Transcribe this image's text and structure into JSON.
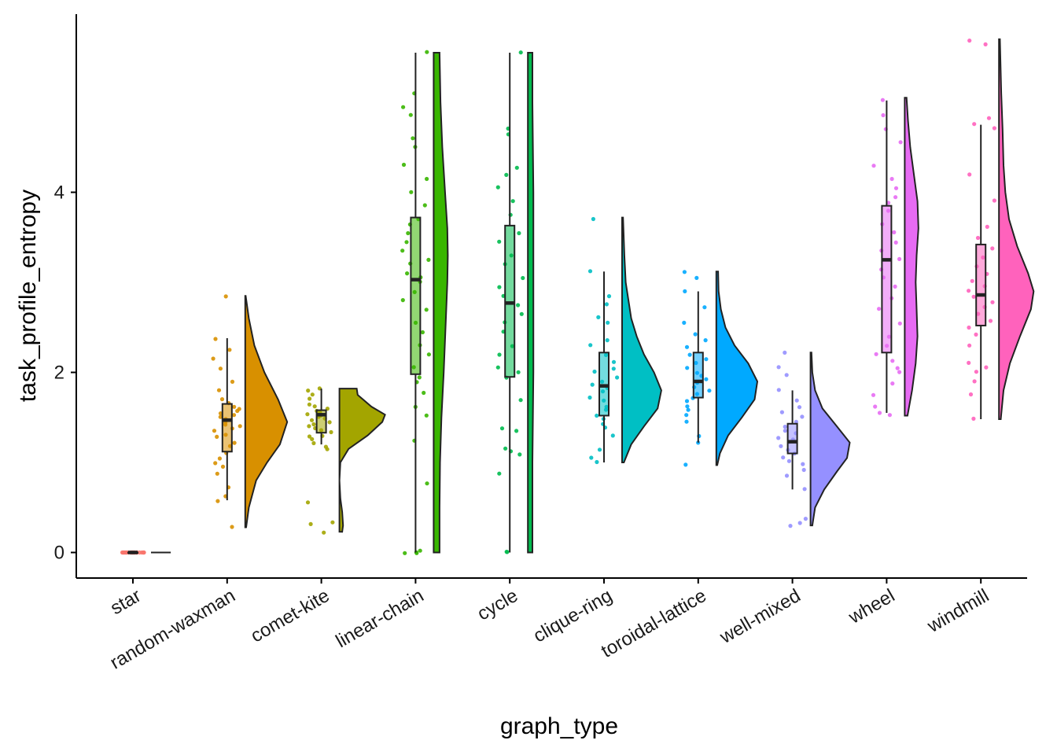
{
  "chart_data": {
    "type": "raincloud",
    "xlabel": "graph_type",
    "ylabel": "task_profile_entropy",
    "ylim": [
      -0.28,
      5.85
    ],
    "yticks": [
      0,
      2,
      4
    ],
    "legend": "none",
    "grid": false,
    "groups": [
      {
        "name": "star",
        "color": "#F8766D",
        "box": {
          "min": 0,
          "q1": 0,
          "median": 0,
          "q3": 0,
          "max": 0
        },
        "density": {
          "ys": [
            0,
            0
          ],
          "ws": [
            0.65,
            0.65
          ]
        },
        "points": {
          "n": 30,
          "values": []
        }
      },
      {
        "name": "random-waxman",
        "color": "#D89000",
        "box": {
          "min": 0.58,
          "q1": 1.12,
          "median": 1.47,
          "q3": 1.65,
          "max": 2.38
        },
        "density": {
          "ys": [
            0.28,
            0.5,
            0.8,
            1.0,
            1.2,
            1.45,
            1.7,
            2.0,
            2.3,
            2.6,
            2.85
          ],
          "ws": [
            0.02,
            0.08,
            0.24,
            0.48,
            0.76,
            0.92,
            0.72,
            0.42,
            0.2,
            0.08,
            0.01
          ]
        },
        "points": {
          "n": 60,
          "values": [
            0.28,
            0.58,
            0.62,
            0.72,
            0.88,
            0.95,
            1.0,
            1.05,
            1.1,
            1.18,
            1.22,
            1.28,
            1.3,
            1.35,
            1.38,
            1.4,
            1.42,
            1.45,
            1.48,
            1.5,
            1.52,
            1.55,
            1.58,
            1.6,
            1.62,
            1.65,
            1.7,
            1.8,
            1.9,
            2.05,
            2.15,
            2.25,
            2.38,
            2.85
          ]
        }
      },
      {
        "name": "comet-kite",
        "color": "#A3A500",
        "box": {
          "min": 1.2,
          "q1": 1.33,
          "median": 1.53,
          "q3": 1.58,
          "max": 1.82
        },
        "density": {
          "ys": [
            0.23,
            0.3,
            0.45,
            0.6,
            0.8,
            1.0,
            1.15,
            1.3,
            1.45,
            1.53,
            1.62,
            1.75,
            1.82
          ],
          "ws": [
            0.06,
            0.08,
            0.06,
            0.02,
            0.0,
            0.02,
            0.2,
            0.62,
            0.94,
            1.0,
            0.7,
            0.4,
            0.38
          ]
        },
        "points": {
          "n": 60,
          "values": [
            0.22,
            0.32,
            0.33,
            0.55,
            1.15,
            1.18,
            1.22,
            1.25,
            1.28,
            1.3,
            1.33,
            1.35,
            1.38,
            1.4,
            1.42,
            1.44,
            1.46,
            1.48,
            1.5,
            1.52,
            1.54,
            1.56,
            1.58,
            1.6,
            1.62,
            1.65,
            1.7,
            1.75,
            1.8,
            1.82
          ]
        }
      },
      {
        "name": "linear-chain",
        "color": "#39B600",
        "box": {
          "min": 0,
          "q1": 1.98,
          "median": 3.03,
          "q3": 3.72,
          "max": 5.55
        },
        "density": {
          "ys": [
            0,
            0.5,
            1.0,
            1.5,
            2.0,
            2.5,
            3.0,
            3.3,
            3.6,
            4.0,
            4.5,
            5.0,
            5.55
          ],
          "ws": [
            0.13,
            0.13,
            0.14,
            0.17,
            0.22,
            0.26,
            0.3,
            0.31,
            0.3,
            0.25,
            0.19,
            0.15,
            0.13
          ]
        },
        "points": {
          "n": 60,
          "values": [
            0,
            0,
            0,
            0.02,
            0.77,
            1.25,
            1.52,
            1.62,
            1.78,
            1.9,
            1.95,
            2.05,
            2.2,
            2.3,
            2.45,
            2.55,
            2.7,
            2.8,
            2.9,
            3.0,
            3.05,
            3.1,
            3.2,
            3.25,
            3.35,
            3.45,
            3.55,
            3.65,
            3.7,
            3.85,
            4.0,
            4.15,
            4.3,
            4.5,
            4.6,
            4.85,
            4.95,
            5.1,
            5.55
          ]
        }
      },
      {
        "name": "cycle",
        "color": "#00BB4E",
        "box": {
          "min": 0,
          "q1": 1.95,
          "median": 2.77,
          "q3": 3.63,
          "max": 5.55
        },
        "density": {
          "ys": [
            0,
            0.5,
            1.0,
            1.5,
            2.0,
            2.5,
            3.0,
            3.5,
            4.0,
            4.5,
            5.0,
            5.55
          ],
          "ws": [
            0.1,
            0.1,
            0.1,
            0.11,
            0.12,
            0.12,
            0.12,
            0.12,
            0.12,
            0.11,
            0.1,
            0.1
          ]
        },
        "points": {
          "n": 60,
          "values": [
            0,
            0,
            0.88,
            1.08,
            1.12,
            1.15,
            1.35,
            1.38,
            1.7,
            1.95,
            2.0,
            2.05,
            2.2,
            2.3,
            2.45,
            2.55,
            2.65,
            2.75,
            2.85,
            2.95,
            3.05,
            3.2,
            3.3,
            3.45,
            3.55,
            3.75,
            3.9,
            4.05,
            4.2,
            4.28,
            4.65,
            4.7,
            5.55
          ]
        }
      },
      {
        "name": "clique-ring",
        "color": "#00BFC4",
        "box": {
          "min": 1.0,
          "q1": 1.52,
          "median": 1.85,
          "q3": 2.22,
          "max": 3.12
        },
        "density": {
          "ys": [
            1.0,
            1.2,
            1.4,
            1.6,
            1.8,
            2.0,
            2.2,
            2.4,
            2.6,
            2.8,
            3.0,
            3.3,
            3.72
          ],
          "ws": [
            0.04,
            0.2,
            0.48,
            0.78,
            0.86,
            0.7,
            0.48,
            0.32,
            0.2,
            0.14,
            0.08,
            0.05,
            0.02
          ]
        },
        "points": {
          "n": 60,
          "values": [
            1.0,
            1.05,
            1.15,
            1.3,
            1.38,
            1.42,
            1.48,
            1.52,
            1.58,
            1.62,
            1.68,
            1.72,
            1.78,
            1.82,
            1.86,
            1.9,
            1.95,
            2.0,
            2.05,
            2.12,
            2.2,
            2.3,
            2.35,
            2.55,
            2.62,
            2.75,
            2.85,
            3.12,
            3.7
          ]
        }
      },
      {
        "name": "toroidal-lattice",
        "color": "#00A9FF",
        "box": {
          "min": 1.22,
          "q1": 1.72,
          "median": 1.9,
          "q3": 2.22,
          "max": 2.9
        },
        "density": {
          "ys": [
            0.97,
            1.1,
            1.3,
            1.5,
            1.7,
            1.9,
            2.1,
            2.3,
            2.5,
            2.7,
            2.9,
            3.12
          ],
          "ws": [
            0.02,
            0.08,
            0.26,
            0.56,
            0.84,
            0.9,
            0.7,
            0.4,
            0.2,
            0.1,
            0.05,
            0.04
          ]
        },
        "points": {
          "n": 60,
          "values": [
            0.97,
            1.22,
            1.3,
            1.45,
            1.52,
            1.58,
            1.62,
            1.68,
            1.72,
            1.76,
            1.8,
            1.84,
            1.88,
            1.92,
            1.96,
            2.0,
            2.05,
            2.1,
            2.15,
            2.2,
            2.28,
            2.35,
            2.42,
            2.55,
            2.72,
            2.9,
            3.05,
            3.12
          ]
        }
      },
      {
        "name": "well-mixed",
        "color": "#9590FF",
        "box": {
          "min": 0.7,
          "q1": 1.1,
          "median": 1.23,
          "q3": 1.43,
          "max": 1.8
        },
        "density": {
          "ys": [
            0.3,
            0.5,
            0.7,
            0.9,
            1.05,
            1.22,
            1.4,
            1.6,
            1.8,
            2.0,
            2.22
          ],
          "ws": [
            0.04,
            0.1,
            0.3,
            0.58,
            0.8,
            0.86,
            0.58,
            0.26,
            0.1,
            0.04,
            0.02
          ]
        },
        "points": {
          "n": 60,
          "values": [
            0.3,
            0.32,
            0.38,
            0.7,
            0.85,
            0.92,
            0.98,
            1.02,
            1.06,
            1.1,
            1.14,
            1.18,
            1.22,
            1.25,
            1.28,
            1.32,
            1.36,
            1.4,
            1.45,
            1.5,
            1.55,
            1.62,
            1.68,
            1.8,
            1.98,
            2.05,
            2.22
          ]
        }
      },
      {
        "name": "wheel",
        "color": "#E76BF3",
        "box": {
          "min": 1.55,
          "q1": 2.22,
          "median": 3.25,
          "q3": 3.85,
          "max": 5.02
        },
        "density": {
          "ys": [
            1.52,
            1.8,
            2.1,
            2.4,
            2.7,
            3.0,
            3.3,
            3.6,
            3.9,
            4.2,
            4.5,
            4.8,
            5.05
          ],
          "ws": [
            0.06,
            0.16,
            0.24,
            0.28,
            0.26,
            0.24,
            0.26,
            0.3,
            0.28,
            0.2,
            0.12,
            0.07,
            0.04
          ]
        },
        "points": {
          "n": 60,
          "values": [
            1.52,
            1.55,
            1.62,
            1.75,
            1.88,
            2.0,
            2.05,
            2.12,
            2.2,
            2.3,
            2.4,
            2.55,
            2.7,
            2.82,
            2.95,
            3.05,
            3.15,
            3.25,
            3.35,
            3.45,
            3.55,
            3.65,
            3.8,
            3.88,
            3.95,
            4.05,
            4.15,
            4.3,
            4.55,
            4.7,
            4.85,
            5.02
          ]
        }
      },
      {
        "name": "windmill",
        "color": "#FF62BC",
        "box": {
          "min": 1.48,
          "q1": 2.52,
          "median": 2.86,
          "q3": 3.42,
          "max": 4.75
        },
        "density": {
          "ys": [
            1.48,
            1.8,
            2.1,
            2.4,
            2.7,
            2.9,
            3.1,
            3.4,
            3.7,
            4.0,
            4.3,
            4.7,
            5.1,
            5.7
          ],
          "ws": [
            0.04,
            0.1,
            0.24,
            0.46,
            0.7,
            0.76,
            0.64,
            0.4,
            0.22,
            0.14,
            0.1,
            0.08,
            0.05,
            0.02
          ]
        },
        "points": {
          "n": 60,
          "values": [
            1.48,
            1.75,
            1.9,
            2.0,
            2.05,
            2.1,
            2.3,
            2.42,
            2.5,
            2.58,
            2.65,
            2.72,
            2.78,
            2.84,
            2.9,
            2.96,
            3.02,
            3.1,
            3.18,
            3.28,
            3.38,
            3.5,
            3.62,
            3.9,
            4.2,
            4.72,
            4.75,
            4.82,
            5.65,
            5.68
          ]
        }
      }
    ]
  }
}
